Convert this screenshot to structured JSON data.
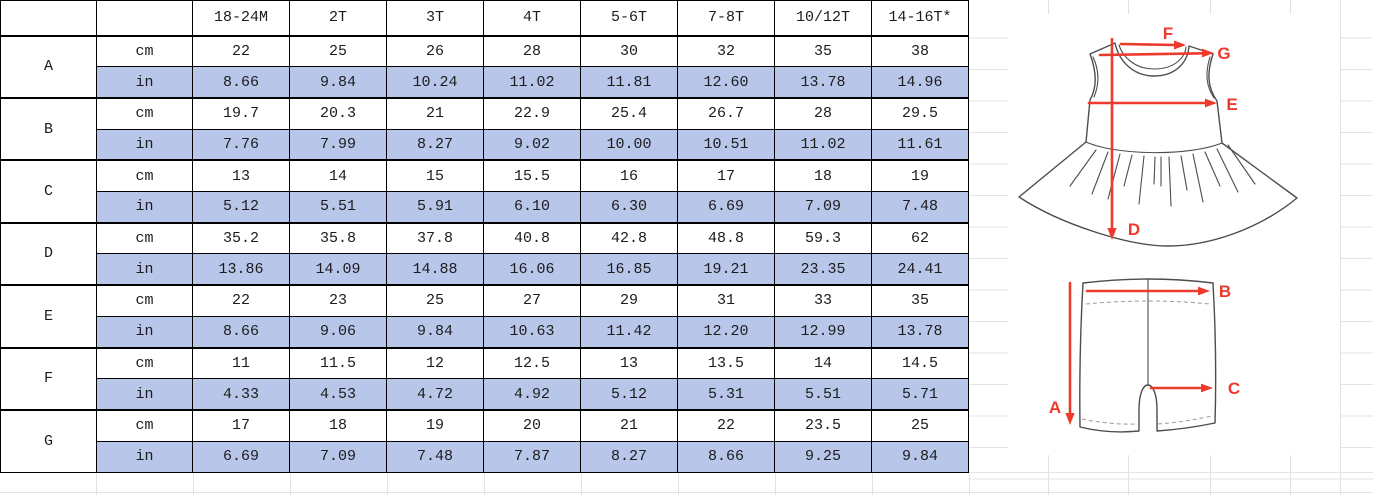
{
  "sheet": {
    "table": {
      "blank_corner": "",
      "size_headers": [
        "18-24M",
        "2T",
        "3T",
        "4T",
        "5-6T",
        "7-8T",
        "10/12T",
        "14-16T*"
      ],
      "unit_cm": "cm",
      "unit_in": "in",
      "rows": [
        {
          "label": "A",
          "cm": [
            "22",
            "25",
            "26",
            "28",
            "30",
            "32",
            "35",
            "38"
          ],
          "in": [
            "8.66",
            "9.84",
            "10.24",
            "11.02",
            "11.81",
            "12.60",
            "13.78",
            "14.96"
          ]
        },
        {
          "label": "B",
          "cm": [
            "19.7",
            "20.3",
            "21",
            "22.9",
            "25.4",
            "26.7",
            "28",
            "29.5"
          ],
          "in": [
            "7.76",
            "7.99",
            "8.27",
            "9.02",
            "10.00",
            "10.51",
            "11.02",
            "11.61"
          ]
        },
        {
          "label": "C",
          "cm": [
            "13",
            "14",
            "15",
            "15.5",
            "16",
            "17",
            "18",
            "19"
          ],
          "in": [
            "5.12",
            "5.51",
            "5.91",
            "6.10",
            "6.30",
            "6.69",
            "7.09",
            "7.48"
          ]
        },
        {
          "label": "D",
          "cm": [
            "35.2",
            "35.8",
            "37.8",
            "40.8",
            "42.8",
            "48.8",
            "59.3",
            "62"
          ],
          "in": [
            "13.86",
            "14.09",
            "14.88",
            "16.06",
            "16.85",
            "19.21",
            "23.35",
            "24.41"
          ]
        },
        {
          "label": "E",
          "cm": [
            "22",
            "23",
            "25",
            "27",
            "29",
            "31",
            "33",
            "35"
          ],
          "in": [
            "8.66",
            "9.06",
            "9.84",
            "10.63",
            "11.42",
            "12.20",
            "12.99",
            "13.78"
          ]
        },
        {
          "label": "F",
          "cm": [
            "11",
            "11.5",
            "12",
            "12.5",
            "13",
            "13.5",
            "14",
            "14.5"
          ],
          "in": [
            "4.33",
            "4.53",
            "4.72",
            "4.92",
            "5.12",
            "5.31",
            "5.51",
            "5.71"
          ]
        },
        {
          "label": "G",
          "cm": [
            "17",
            "18",
            "19",
            "20",
            "21",
            "22",
            "23.5",
            "25"
          ],
          "in": [
            "6.69",
            "7.09",
            "7.48",
            "7.87",
            "8.27",
            "8.66",
            "9.25",
            "9.84"
          ]
        }
      ]
    },
    "diagram": {
      "dress": {
        "labels": {
          "f": "F",
          "g": "G",
          "e": "E",
          "d": "D"
        }
      },
      "shorts": {
        "labels": {
          "b": "B",
          "c": "C",
          "a": "A"
        }
      }
    },
    "colors": {
      "highlight_row": "#b8c6ea",
      "arrow_red": "#ee3a2c",
      "outline_gray": "#4d4d4d",
      "gridline": "#e3e3e3"
    }
  }
}
